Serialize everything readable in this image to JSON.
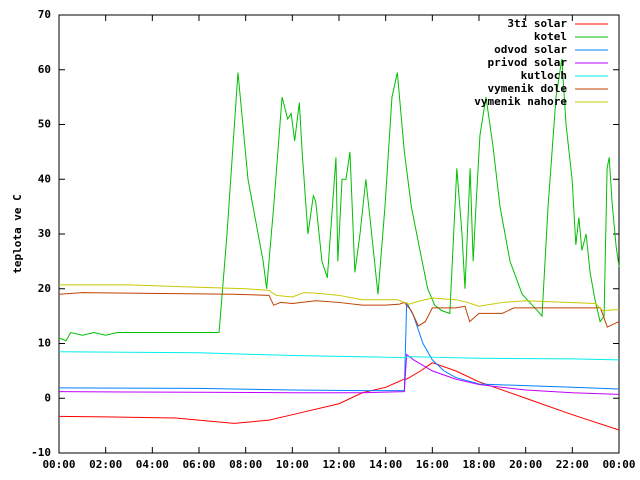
{
  "chart_data": {
    "type": "line",
    "ylabel": "teplota ve C",
    "xlim": [
      0,
      24
    ],
    "ylim": [
      -10,
      70
    ],
    "xticks": [
      {
        "value": 0,
        "label": "00:00"
      },
      {
        "value": 2,
        "label": "02:00"
      },
      {
        "value": 4,
        "label": "04:00"
      },
      {
        "value": 6,
        "label": "06:00"
      },
      {
        "value": 8,
        "label": "08:00"
      },
      {
        "value": 10,
        "label": "10:00"
      },
      {
        "value": 12,
        "label": "12:00"
      },
      {
        "value": 14,
        "label": "14:00"
      },
      {
        "value": 16,
        "label": "16:00"
      },
      {
        "value": 18,
        "label": "18:00"
      },
      {
        "value": 20,
        "label": "20:00"
      },
      {
        "value": 22,
        "label": "22:00"
      },
      {
        "value": 24,
        "label": "00:00"
      }
    ],
    "yticks": [
      -10,
      0,
      10,
      20,
      30,
      40,
      50,
      60,
      70
    ],
    "grid": false,
    "legend": "top-right",
    "series": [
      {
        "name": "3ti solar",
        "color": "#ff0000",
        "x": [
          0,
          2,
          5,
          7.5,
          9,
          10,
          12,
          13,
          14,
          14.8,
          14.9,
          15.5,
          16,
          17,
          18,
          20,
          22,
          24
        ],
        "values": [
          -3.3,
          -3.4,
          -3.6,
          -4.6,
          -4,
          -3,
          -1,
          1,
          2,
          3.5,
          3.5,
          5,
          6.5,
          5,
          3,
          0,
          -3,
          -5.8
        ]
      },
      {
        "name": "kotel",
        "color": "#00c000",
        "x": [
          0,
          0.3,
          0.5,
          1,
          1.5,
          2,
          2.5,
          3,
          4,
          6,
          6.86,
          7.2,
          7.67,
          8.1,
          8.75,
          8.9,
          9.2,
          9.56,
          9.8,
          9.95,
          10.1,
          10.3,
          10.42,
          10.67,
          10.9,
          11.0,
          11.27,
          11.5,
          11.87,
          11.95,
          12.13,
          12.3,
          12.47,
          12.68,
          12.9,
          13.15,
          13.4,
          13.67,
          13.97,
          14.27,
          14.5,
          14.8,
          15.1,
          15.47,
          15.8,
          16.1,
          16.4,
          16.75,
          17.05,
          17.27,
          17.4,
          17.62,
          17.75,
          17.87,
          18.04,
          18.3,
          18.6,
          18.9,
          19.33,
          19.85,
          20.5,
          20.7,
          20.96,
          21.3,
          21.55,
          21.73,
          21.99,
          22.15,
          22.28,
          22.41,
          22.59,
          22.76,
          22.97,
          23.19,
          23.36,
          23.49,
          23.58,
          23.7,
          23.87,
          24
        ],
        "values": [
          11,
          10.5,
          12,
          11.5,
          12,
          11.5,
          12,
          12,
          12,
          12,
          12,
          30,
          59.5,
          40,
          25,
          20,
          35,
          55,
          51,
          52,
          47,
          54,
          45,
          30,
          37,
          36,
          25,
          22,
          44,
          25,
          40,
          40,
          45,
          23,
          30,
          40,
          30,
          19,
          35,
          55,
          59.5,
          45,
          35,
          27,
          20,
          17,
          16,
          15.5,
          42,
          30,
          20,
          42,
          25,
          35,
          48,
          55,
          46,
          35,
          25,
          19,
          16,
          15,
          35,
          55,
          62,
          50,
          40,
          28,
          33,
          27,
          30,
          23,
          18,
          14,
          15,
          42,
          44,
          36,
          28,
          24
        ]
      },
      {
        "name": "odvod solar",
        "color": "#0080ff",
        "x": [
          0,
          6,
          10,
          13,
          14.8,
          14.9,
          15.2,
          15.6,
          16,
          16.5,
          17,
          18,
          20,
          22,
          24
        ],
        "values": [
          1.9,
          1.8,
          1.5,
          1.4,
          1.4,
          17.5,
          15,
          10,
          7,
          5,
          3.8,
          2.6,
          2.3,
          2,
          1.7
        ]
      },
      {
        "name": "privod solar",
        "color": "#c000ff",
        "x": [
          0,
          6,
          10,
          13,
          14.8,
          14.9,
          15.2,
          15.6,
          16,
          17,
          18,
          20,
          22,
          24
        ],
        "values": [
          1.2,
          1.1,
          1,
          1,
          1.2,
          8,
          7,
          6,
          5,
          3.5,
          2.5,
          1.5,
          1,
          0.7
        ]
      },
      {
        "name": "kutloch",
        "color": "#00eeee",
        "x": [
          0,
          6,
          10,
          14,
          14.8,
          15,
          16,
          18,
          22,
          24
        ],
        "values": [
          8.5,
          8.3,
          7.8,
          7.5,
          7.4,
          7.6,
          7.5,
          7.3,
          7.2,
          7
        ]
      },
      {
        "name": "vymenik dole",
        "color": "#c04000",
        "x": [
          0,
          1,
          7.5,
          9,
          9.2,
          9.5,
          10,
          11,
          12,
          13,
          14,
          14.6,
          14.8,
          15.1,
          15.4,
          15.7,
          16,
          17,
          17.4,
          17.6,
          18,
          19,
          19.5,
          21,
          23.2,
          23.5,
          24
        ],
        "values": [
          19,
          19.3,
          19,
          18.8,
          17,
          17.5,
          17.3,
          17.8,
          17.5,
          17,
          17,
          17.2,
          17.5,
          16,
          13.2,
          14,
          16.5,
          16.5,
          16.8,
          14,
          15.5,
          15.5,
          16.5,
          16.5,
          16.5,
          13,
          14
        ]
      },
      {
        "name": "vymenik nahore",
        "color": "#c8c800",
        "x": [
          0,
          3,
          5,
          8,
          9,
          9.3,
          10,
          10.5,
          11,
          12,
          13,
          14,
          14.5,
          15,
          15.5,
          16,
          17,
          17.5,
          18,
          19,
          20,
          23,
          23.3,
          24
        ],
        "values": [
          20.7,
          20.7,
          20.4,
          20,
          19.7,
          18.8,
          18.5,
          19.3,
          19.2,
          18.8,
          18,
          18,
          18,
          17.2,
          17.8,
          18.3,
          18,
          17.5,
          16.8,
          17.5,
          17.8,
          17.3,
          16,
          16.2
        ]
      }
    ]
  }
}
